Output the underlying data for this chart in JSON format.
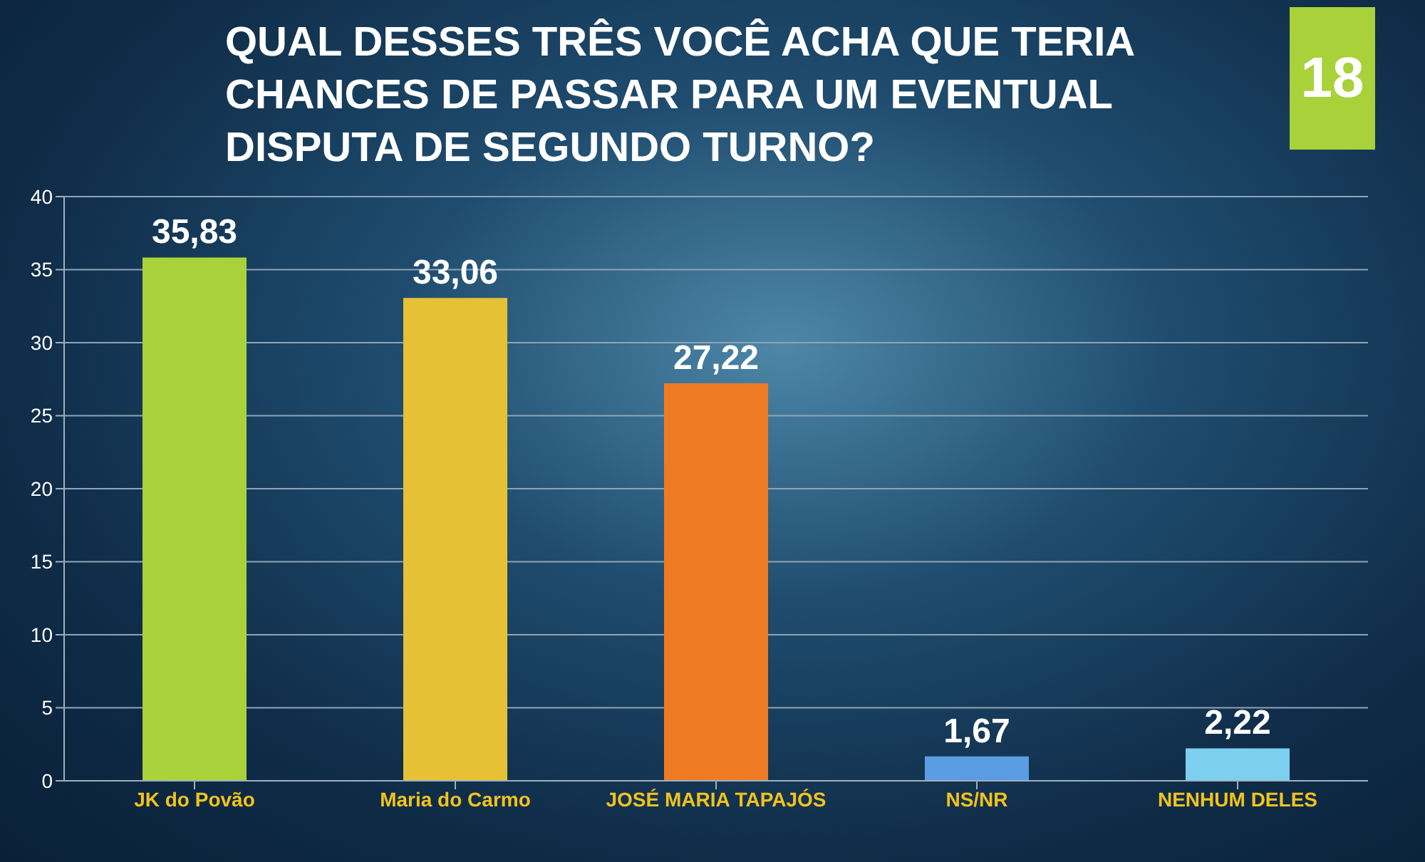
{
  "chart_data": {
    "type": "bar",
    "title": "QUAL DESSES TRÊS VOCÊ ACHA QUE TERIA CHANCES DE PASSAR PARA UM EVENTUAL DISPUTA DE SEGUNDO TURNO?",
    "categories": [
      "JK do Povão",
      "Maria do Carmo",
      "JOSÉ MARIA TAPAJÓS",
      "NS/NR",
      "NENHUM DELES"
    ],
    "values": [
      35.83,
      33.06,
      27.22,
      1.67,
      2.22
    ],
    "colors": [
      "#a8d13a",
      "#e6c136",
      "#ee7a24",
      "#5a9de3",
      "#7dcfef"
    ],
    "value_labels": [
      "35,83",
      "33,06",
      "27,22",
      "1,67",
      "2,22"
    ],
    "ylim": [
      0,
      40
    ],
    "yticks": [
      0,
      5,
      10,
      15,
      20,
      25,
      30,
      35,
      40
    ],
    "grid": "y",
    "annotations": [
      "18"
    ]
  }
}
